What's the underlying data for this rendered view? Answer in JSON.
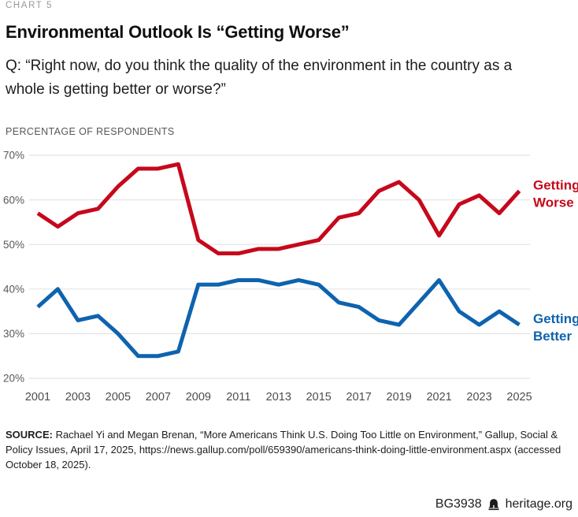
{
  "kicker": "CHART 5",
  "title": "Environmental Outlook Is “Getting Worse”",
  "question": "Q: “Right now, do you think the quality of the environment in the country as a whole is getting better or worse?”",
  "axis_label": "PERCENTAGE OF RESPONDENTS",
  "chart_data": {
    "type": "line",
    "x": [
      2001,
      2002,
      2003,
      2004,
      2005,
      2006,
      2007,
      2008,
      2009,
      2010,
      2011,
      2012,
      2013,
      2014,
      2015,
      2016,
      2017,
      2018,
      2019,
      2020,
      2021,
      2022,
      2023,
      2024,
      2025
    ],
    "x_tick_labels": [
      "2001",
      "2003",
      "2005",
      "2007",
      "2009",
      "2011",
      "2013",
      "2015",
      "2017",
      "2019",
      "2021",
      "2023",
      "2025"
    ],
    "ylim": [
      20,
      70
    ],
    "yticks": [
      70,
      60,
      50,
      40,
      30,
      20
    ],
    "ytick_suffix": "%",
    "grid": "horizontal",
    "legend_position": "right-of-line-ends",
    "series": [
      {
        "name": "Getting Worse",
        "color": "#c6081c",
        "values": [
          57,
          54,
          57,
          58,
          63,
          67,
          67,
          68,
          51,
          48,
          48,
          49,
          49,
          50,
          51,
          56,
          57,
          62,
          64,
          60,
          52,
          59,
          61,
          57,
          62
        ]
      },
      {
        "name": "Getting Better",
        "color": "#0e63ae",
        "values": [
          36,
          40,
          33,
          34,
          30,
          25,
          25,
          26,
          41,
          41,
          42,
          42,
          41,
          42,
          41,
          37,
          36,
          33,
          32,
          37,
          42,
          35,
          32,
          35,
          32
        ]
      }
    ]
  },
  "source": {
    "label": "SOURCE:",
    "text": " Rachael Yi and Megan Brenan, “More Americans Think U.S. Doing Too Little on Environment,” Gallup, Social & Policy Issues, April 17, 2025, https://news.gallup.com/poll/659390/americans-think-doing-little-environment.aspx (accessed October 18, 2025)."
  },
  "footer": {
    "doc_id": "BG3938",
    "site": "heritage.org",
    "icon": "liberty-bell-icon"
  },
  "colors": {
    "grid": "#e4e4e5",
    "ytick_text": "#58595b",
    "xtick_text": "#4d4d4f"
  }
}
